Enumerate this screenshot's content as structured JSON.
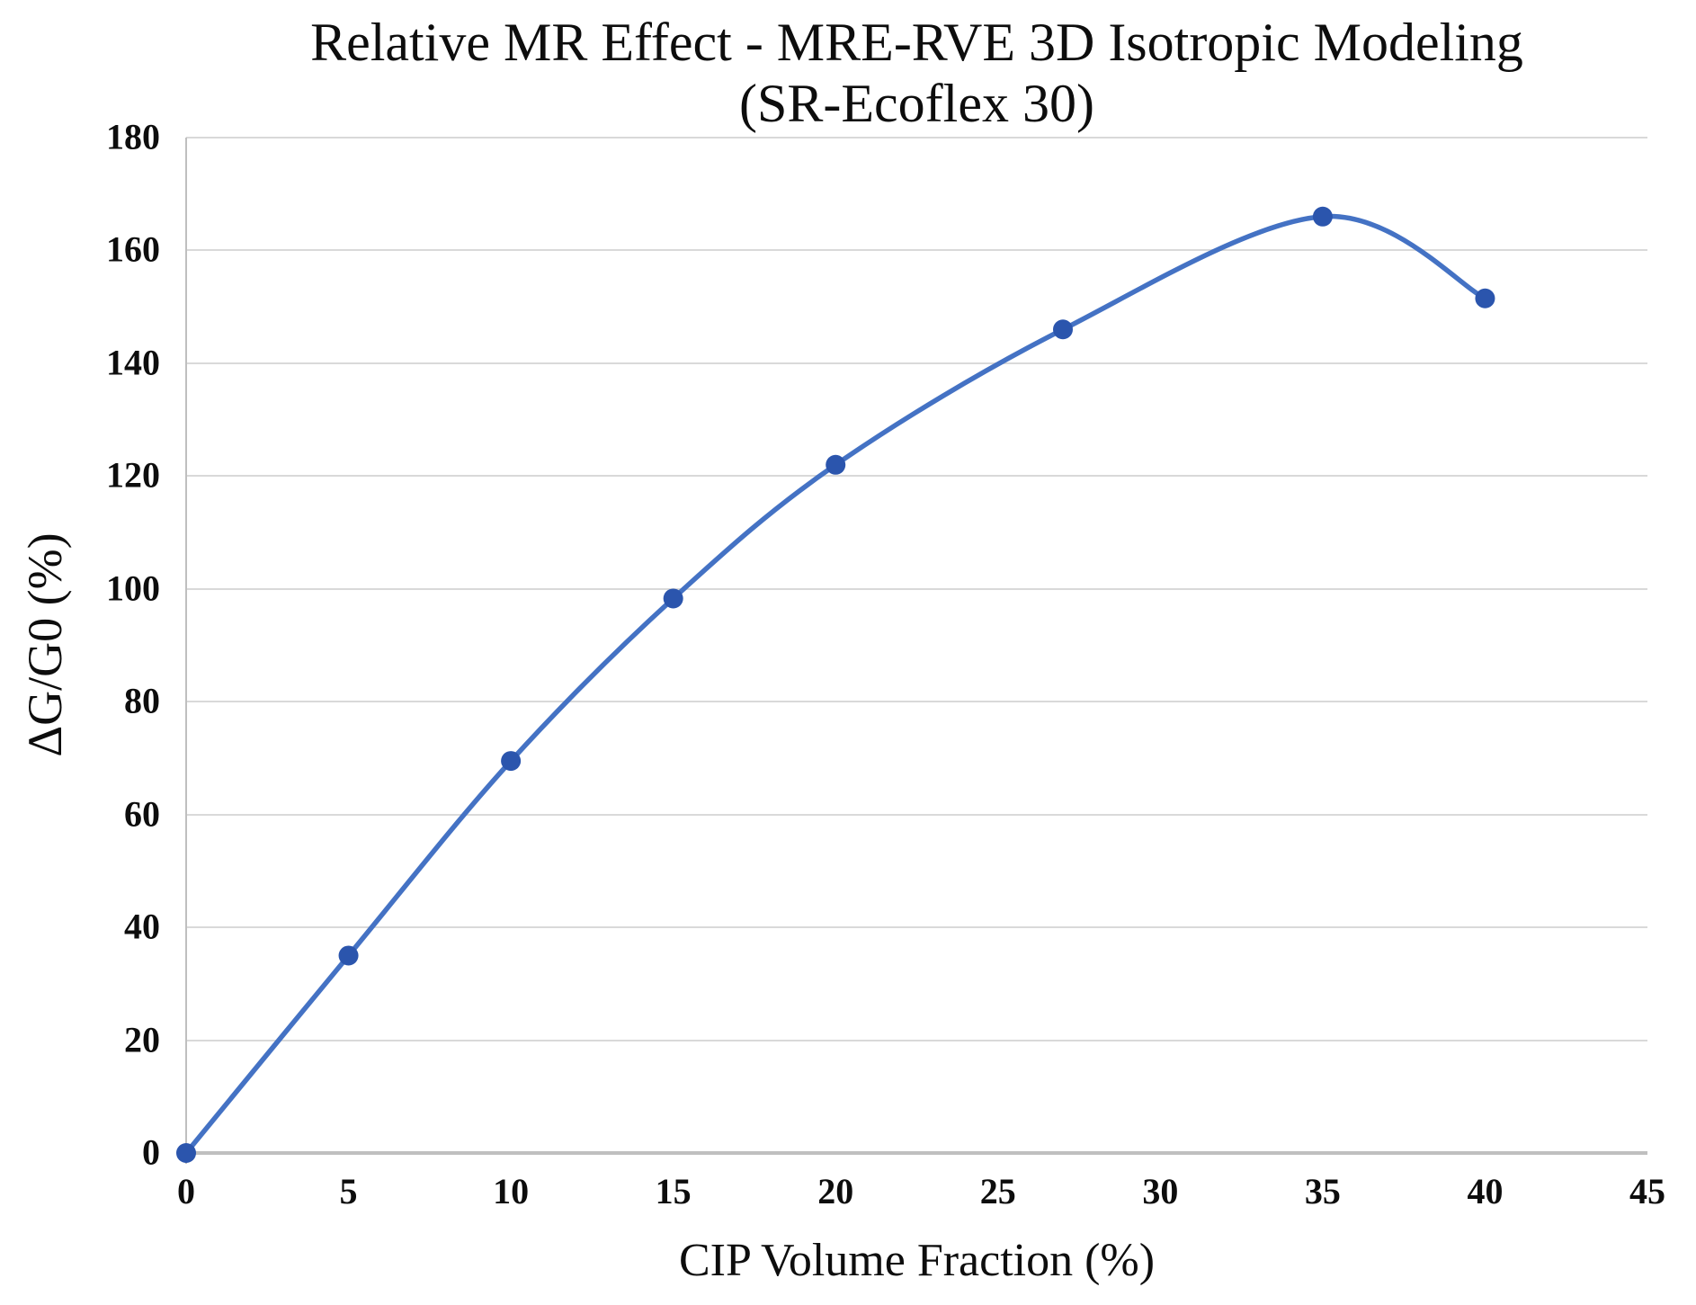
{
  "chart_data": {
    "type": "line",
    "title": "Relative MR Effect - MRE-RVE 3D Isotropic Modeling",
    "subtitle": "(SR-Ecoflex 30)",
    "xlabel": "CIP Volume Fraction (%)",
    "ylabel": "ΔG/G0 (%)",
    "series": [
      {
        "name": "Relative MR effect",
        "x": [
          0,
          5,
          10,
          15,
          20,
          27,
          35,
          40
        ],
        "y": [
          0,
          35,
          69.5,
          98.3,
          122,
          146,
          166,
          151.5
        ]
      }
    ],
    "xlim": [
      0,
      45
    ],
    "ylim": [
      0,
      180
    ],
    "x_ticks": [
      0,
      5,
      10,
      15,
      20,
      25,
      30,
      35,
      40,
      45
    ],
    "y_ticks": [
      0,
      20,
      40,
      60,
      80,
      100,
      120,
      140,
      160,
      180
    ],
    "grid": true,
    "legend": "none",
    "smooth": true,
    "marker": "circle",
    "colors": {
      "line": "#4472C4",
      "marker": "#2B55AD",
      "gridline": "#D9D9D9",
      "axis": "#BFBFBF",
      "text": "#0D0D0D"
    }
  }
}
